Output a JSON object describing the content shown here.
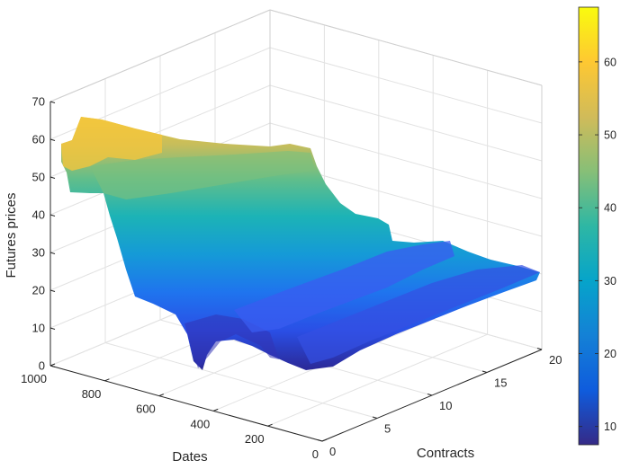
{
  "chart_data": {
    "type": "surface",
    "xlabel": "Dates",
    "ylabel": "Contracts",
    "zlabel": "Futures prices",
    "x_ticks": [
      "1000",
      "800",
      "600",
      "400",
      "200",
      "0"
    ],
    "y_ticks": [
      "0",
      "5",
      "10",
      "15",
      "20"
    ],
    "z_ticks": [
      "0",
      "10",
      "20",
      "30",
      "40",
      "50",
      "60",
      "70"
    ],
    "xlim": [
      0,
      1000
    ],
    "ylim": [
      0,
      20
    ],
    "zlim": [
      0,
      70
    ],
    "grid": true,
    "colormap": "parula",
    "colorbar": {
      "ticks": [
        "10",
        "20",
        "30",
        "40",
        "50",
        "60"
      ],
      "limits": [
        7.5,
        67.5
      ],
      "placement": "right"
    },
    "series": [
      {
        "dates": [
          960,
          900,
          850,
          800,
          750,
          700,
          650,
          600,
          550,
          500,
          470,
          440,
          400,
          350,
          300,
          250,
          200,
          150,
          100,
          50,
          0
        ],
        "contract": 1,
        "prices": [
          56,
          58,
          63,
          63,
          60,
          52,
          45,
          38,
          30,
          20,
          15,
          11,
          17,
          20,
          21,
          19,
          20,
          19,
          20,
          21,
          20
        ]
      },
      {
        "contract": 20,
        "dates": [
          960,
          900,
          850,
          800,
          750,
          700,
          650,
          600,
          550,
          500,
          470,
          440,
          400,
          350,
          300,
          250,
          200,
          150,
          100,
          50,
          0
        ],
        "prices": [
          48,
          50,
          51,
          50,
          49,
          45,
          42,
          38,
          32,
          27,
          25,
          24,
          24,
          24,
          23,
          22,
          21,
          22,
          21,
          22,
          21
        ]
      }
    ]
  },
  "colors": {
    "axis": "#262626",
    "grid": "#e2e2e2",
    "parula": [
      "#352a87",
      "#0f5cdd",
      "#1481d6",
      "#06a4ca",
      "#2eb7a4",
      "#87bf77",
      "#d1bb59",
      "#fec832",
      "#f9fb0e"
    ]
  }
}
